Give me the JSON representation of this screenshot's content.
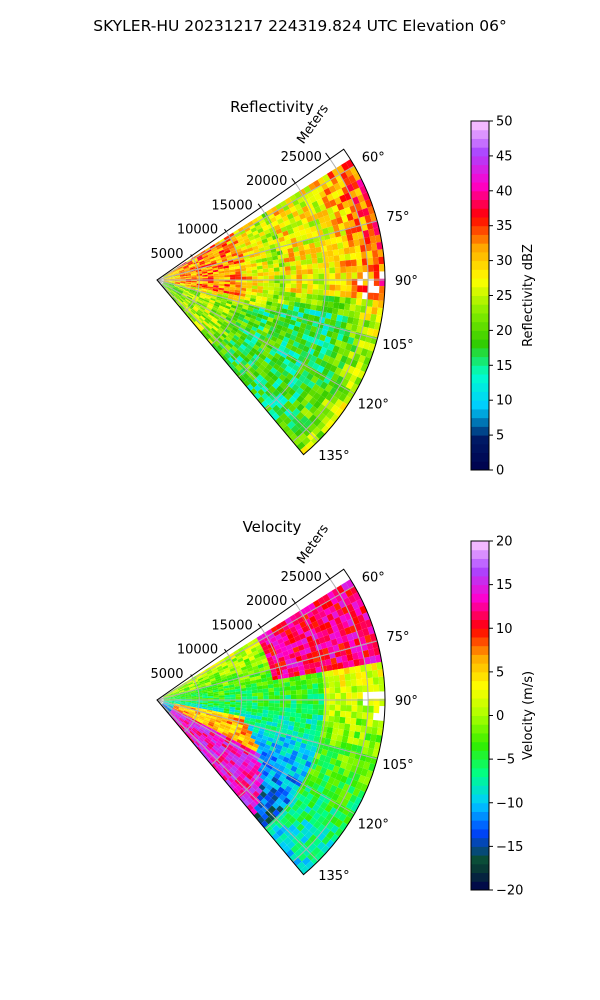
{
  "figure": {
    "title": "SKYLER-HU  20231217  224319.824 UTC Elevation 06°"
  },
  "chart_data": [
    {
      "type": "heatmap",
      "projection": "polar-sector",
      "title": "Reflectivity",
      "range_axis_label": "Meters",
      "range_ticks": [
        5000,
        10000,
        15000,
        20000,
        25000
      ],
      "range_tick_labels": [
        "5000",
        "10000",
        "15000",
        "20000",
        "25000"
      ],
      "range_max": 27000,
      "azimuth_range_deg": [
        55,
        140
      ],
      "azimuth_ticks": [
        60,
        75,
        90,
        105,
        120,
        135
      ],
      "azimuth_tick_labels": [
        "60°",
        "75°",
        "90°",
        "105°",
        "120°",
        "135°"
      ],
      "grid": true,
      "colorbar": {
        "label": "Reflectivity dBZ",
        "min": 0,
        "max": 50,
        "ticks": [
          0,
          5,
          10,
          15,
          20,
          25,
          30,
          35,
          40,
          45,
          50
        ],
        "tick_labels": [
          "0",
          "5",
          "10",
          "15",
          "20",
          "25",
          "30",
          "35",
          "40",
          "45",
          "50"
        ],
        "colors": [
          "#00004c",
          "#001a66",
          "#00ccff",
          "#00ffcc",
          "#33cc00",
          "#88ee00",
          "#ffff00",
          "#ffaa00",
          "#ff0000",
          "#ff00cc",
          "#aa44ff",
          "#ffccff"
        ]
      }
    },
    {
      "type": "heatmap",
      "projection": "polar-sector",
      "title": "Velocity",
      "range_axis_label": "Meters",
      "range_ticks": [
        5000,
        10000,
        15000,
        20000,
        25000
      ],
      "range_tick_labels": [
        "5000",
        "10000",
        "15000",
        "20000",
        "25000"
      ],
      "range_max": 27000,
      "azimuth_range_deg": [
        55,
        140
      ],
      "azimuth_ticks": [
        60,
        75,
        90,
        105,
        120,
        135
      ],
      "azimuth_tick_labels": [
        "60°",
        "75°",
        "90°",
        "105°",
        "120°",
        "135°"
      ],
      "grid": true,
      "colorbar": {
        "label": "Velocity (m/s)",
        "min": -20,
        "max": 20,
        "ticks": [
          -20,
          -15,
          -10,
          -5,
          0,
          5,
          10,
          15,
          20
        ],
        "tick_labels": [
          "−20",
          "−15",
          "−10",
          "−5",
          "0",
          "5",
          "10",
          "15",
          "20"
        ],
        "colors": [
          "#00004c",
          "#0a4d2e",
          "#0044ff",
          "#00ccff",
          "#00ff88",
          "#33ee00",
          "#aaff00",
          "#ffff00",
          "#ffaa00",
          "#ff0000",
          "#ff00cc",
          "#aa44ff",
          "#ffccff"
        ]
      }
    }
  ]
}
